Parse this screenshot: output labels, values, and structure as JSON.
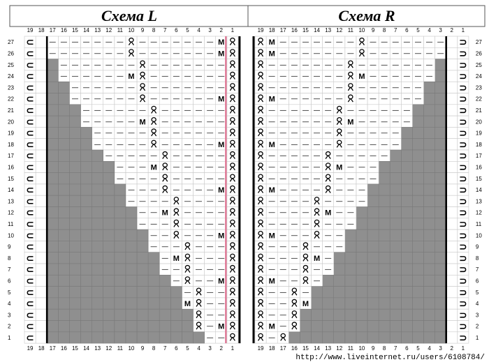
{
  "panels": [
    {
      "id": "left",
      "title": "Схема L",
      "column_labels": [
        "19",
        "18",
        "17",
        "16",
        "15",
        "14",
        "13",
        "12",
        "11",
        "10",
        "9",
        "8",
        "7",
        "6",
        "5",
        "4",
        "3",
        "2",
        "1"
      ],
      "row_labels_side": "left",
      "rows": [
        {
          "row": 27,
          "grey": 0,
          "M": [
            2
          ],
          "Q": [
            10
          ]
        },
        {
          "row": 26,
          "grey": 0,
          "M": [
            2
          ],
          "Q": [
            10
          ]
        },
        {
          "row": 25,
          "grey": 1,
          "M": [],
          "Q": [
            9
          ]
        },
        {
          "row": 24,
          "grey": 1,
          "M": [
            10
          ],
          "Q": [
            9
          ]
        },
        {
          "row": 23,
          "grey": 2,
          "M": [],
          "Q": [
            9
          ]
        },
        {
          "row": 22,
          "grey": 2,
          "M": [
            2
          ],
          "Q": [
            9
          ]
        },
        {
          "row": 21,
          "grey": 3,
          "M": [],
          "Q": [
            8
          ]
        },
        {
          "row": 20,
          "grey": 3,
          "M": [
            9
          ],
          "Q": [
            8
          ]
        },
        {
          "row": 19,
          "grey": 4,
          "M": [],
          "Q": [
            8
          ]
        },
        {
          "row": 18,
          "grey": 4,
          "M": [
            2
          ],
          "Q": [
            8
          ]
        },
        {
          "row": 17,
          "grey": 5,
          "M": [],
          "Q": [
            7
          ]
        },
        {
          "row": 16,
          "grey": 6,
          "M": [
            8
          ],
          "Q": [
            7
          ]
        },
        {
          "row": 15,
          "grey": 6,
          "M": [],
          "Q": [
            7
          ]
        },
        {
          "row": 14,
          "grey": 7,
          "M": [
            2
          ],
          "Q": [
            7
          ]
        },
        {
          "row": 13,
          "grey": 7,
          "M": [],
          "Q": [
            6
          ]
        },
        {
          "row": 12,
          "grey": 8,
          "M": [
            7
          ],
          "Q": [
            6
          ]
        },
        {
          "row": 11,
          "grey": 8,
          "M": [],
          "Q": [
            6
          ]
        },
        {
          "row": 10,
          "grey": 9,
          "M": [
            2
          ],
          "Q": [
            6
          ]
        },
        {
          "row": 9,
          "grey": 9,
          "M": [],
          "Q": [
            5
          ]
        },
        {
          "row": 8,
          "grey": 10,
          "M": [
            6
          ],
          "Q": [
            5
          ]
        },
        {
          "row": 7,
          "grey": 10,
          "M": [],
          "Q": [
            5
          ]
        },
        {
          "row": 6,
          "grey": 11,
          "M": [
            2
          ],
          "Q": [
            5
          ]
        },
        {
          "row": 5,
          "grey": 12,
          "M": [],
          "Q": [
            4
          ]
        },
        {
          "row": 4,
          "grey": 12,
          "M": [
            5
          ],
          "Q": [
            4
          ]
        },
        {
          "row": 3,
          "grey": 13,
          "M": [],
          "Q": [
            4
          ]
        },
        {
          "row": 2,
          "grey": 13,
          "M": [
            2
          ],
          "Q": [
            4
          ]
        },
        {
          "row": 1,
          "grey": 14,
          "M": [],
          "Q": [
            4
          ]
        }
      ]
    },
    {
      "id": "right",
      "title": "Схема R",
      "column_labels": [
        "19",
        "18",
        "17",
        "16",
        "15",
        "14",
        "13",
        "12",
        "11",
        "10",
        "9",
        "8",
        "7",
        "6",
        "5",
        "4",
        "3",
        "2",
        "1"
      ],
      "row_labels_side": "right",
      "rows": [
        {
          "row": 27,
          "grey": 0,
          "M": [
            18
          ],
          "Q": [
            10
          ]
        },
        {
          "row": 26,
          "grey": 0,
          "M": [
            18
          ],
          "Q": [
            10
          ]
        },
        {
          "row": 25,
          "grey": 1,
          "M": [],
          "Q": [
            11
          ]
        },
        {
          "row": 24,
          "grey": 1,
          "M": [
            10
          ],
          "Q": [
            11
          ]
        },
        {
          "row": 23,
          "grey": 2,
          "M": [],
          "Q": [
            11
          ]
        },
        {
          "row": 22,
          "grey": 2,
          "M": [
            18
          ],
          "Q": [
            11
          ]
        },
        {
          "row": 21,
          "grey": 3,
          "M": [],
          "Q": [
            12
          ]
        },
        {
          "row": 20,
          "grey": 3,
          "M": [
            11
          ],
          "Q": [
            12
          ]
        },
        {
          "row": 19,
          "grey": 4,
          "M": [],
          "Q": [
            12
          ]
        },
        {
          "row": 18,
          "grey": 4,
          "M": [
            18
          ],
          "Q": [
            12
          ]
        },
        {
          "row": 17,
          "grey": 5,
          "M": [],
          "Q": [
            13
          ]
        },
        {
          "row": 16,
          "grey": 6,
          "M": [
            12
          ],
          "Q": [
            13
          ]
        },
        {
          "row": 15,
          "grey": 6,
          "M": [],
          "Q": [
            13
          ]
        },
        {
          "row": 14,
          "grey": 7,
          "M": [
            18
          ],
          "Q": [
            13
          ]
        },
        {
          "row": 13,
          "grey": 7,
          "M": [],
          "Q": [
            14
          ]
        },
        {
          "row": 12,
          "grey": 8,
          "M": [
            13
          ],
          "Q": [
            14
          ]
        },
        {
          "row": 11,
          "grey": 8,
          "M": [],
          "Q": [
            14
          ]
        },
        {
          "row": 10,
          "grey": 9,
          "M": [
            18
          ],
          "Q": [
            14
          ]
        },
        {
          "row": 9,
          "grey": 9,
          "M": [],
          "Q": [
            15
          ]
        },
        {
          "row": 8,
          "grey": 10,
          "M": [
            14
          ],
          "Q": [
            15
          ]
        },
        {
          "row": 7,
          "grey": 10,
          "M": [],
          "Q": [
            15
          ]
        },
        {
          "row": 6,
          "grey": 11,
          "M": [
            18
          ],
          "Q": [
            15
          ]
        },
        {
          "row": 5,
          "grey": 12,
          "M": [],
          "Q": [
            16
          ]
        },
        {
          "row": 4,
          "grey": 12,
          "M": [
            15
          ],
          "Q": [
            16
          ]
        },
        {
          "row": 3,
          "grey": 13,
          "M": [],
          "Q": [
            16
          ]
        },
        {
          "row": 2,
          "grey": 13,
          "M": [
            18
          ],
          "Q": [
            16
          ]
        },
        {
          "row": 1,
          "grey": 14,
          "M": [],
          "Q": [
            17
          ]
        }
      ]
    }
  ],
  "symbols": {
    "M": "M",
    "dash": "—",
    "left_edge": "⊂",
    "right_edge": "⊃"
  },
  "watermark": "http://www.liveinternet.ru/users/6108784/",
  "colors": {
    "grey": "#8f8f8f",
    "border": "#000000",
    "grid": "#c8c8c8",
    "accent_line": "#e07090"
  }
}
